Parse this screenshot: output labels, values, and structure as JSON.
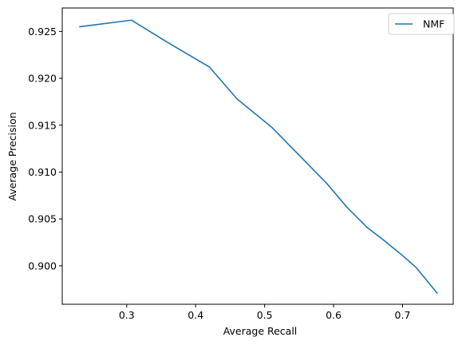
{
  "chart_data": {
    "type": "line",
    "title": "",
    "xlabel": "Average Recall",
    "ylabel": "Average Precision",
    "xlim": [
      0.2065,
      0.7735
    ],
    "ylim": [
      0.8959,
      0.9275
    ],
    "x_ticks": [
      0.3,
      0.4,
      0.5,
      0.6,
      0.7
    ],
    "x_tick_labels": [
      "0.3",
      "0.4",
      "0.5",
      "0.6",
      "0.7"
    ],
    "y_ticks": [
      0.9,
      0.905,
      0.91,
      0.915,
      0.92,
      0.925
    ],
    "y_tick_labels": [
      "0.900",
      "0.905",
      "0.910",
      "0.915",
      "0.920",
      "0.925"
    ],
    "grid": false,
    "legend": "top-right",
    "series": [
      {
        "name": "NMF",
        "color": "#1f77b4",
        "x": [
          0.232,
          0.307,
          0.36,
          0.42,
          0.46,
          0.51,
          0.55,
          0.59,
          0.62,
          0.65,
          0.67,
          0.7,
          0.72,
          0.75
        ],
        "y": [
          0.9255,
          0.9262,
          0.9238,
          0.9212,
          0.9178,
          0.9148,
          0.9118,
          0.9088,
          0.9062,
          0.904,
          0.9029,
          0.9011,
          0.8998,
          0.8971
        ]
      }
    ]
  }
}
